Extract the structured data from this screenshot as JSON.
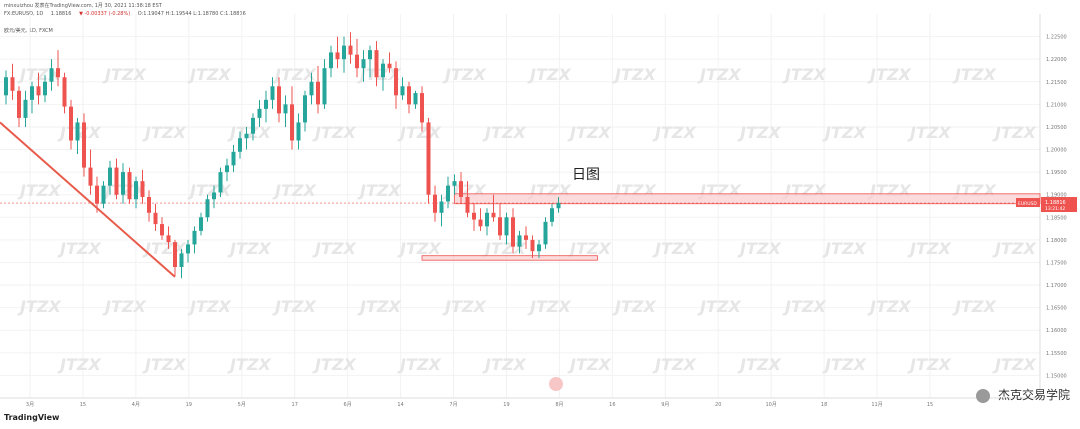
{
  "header": {
    "line1": "minxuizhou 发表在TradingView.com, 1月 30, 2021 11:38:18 EST",
    "symbol": "FX:EURUSD, 1D",
    "last": "1.18816",
    "change": "▼ -0.00337 (-0.28%)",
    "ohlc": "O:1.19047 H:1.19544 L:1.18780 C:1.18816",
    "pair_label": "欧元/美元, 1D, FXCM"
  },
  "annotation": {
    "text": "日图"
  },
  "price_tag": {
    "symbol": "EURUSD",
    "price": "1.18816",
    "countdown": "13:21:42"
  },
  "branding": {
    "platform": "TradingView",
    "account": "杰克交易学院",
    "watermark_text": "JTZX"
  },
  "colors": {
    "up": "#26a69a",
    "down": "#ef5350",
    "trendline": "#e85b4b",
    "zone_fill": "#f9cccc",
    "zone_border": "#ef5350",
    "grid": "#f2f2f2",
    "watermark": "#e6e6e6"
  },
  "chart_data": {
    "type": "candlestick",
    "title": "欧元/美元, 1D, FXCM",
    "ylim": [
      1.145,
      1.23
    ],
    "y_ticks": [
      "1.22500",
      "1.22000",
      "1.21500",
      "1.21000",
      "1.20500",
      "1.20000",
      "1.19500",
      "1.19000",
      "1.18500",
      "1.18000",
      "1.17500",
      "1.17000",
      "1.16500",
      "1.16000",
      "1.15500",
      "1.15000"
    ],
    "x_ticks": [
      "3月",
      "15",
      "4月",
      "19",
      "5月",
      "17",
      "6月",
      "14",
      "7月",
      "19",
      "8月",
      "16",
      "9月",
      "20",
      "10月",
      "18",
      "11月",
      "15"
    ],
    "candles": [
      [
        1.212,
        1.2175,
        1.21,
        1.216
      ],
      [
        1.216,
        1.219,
        1.211,
        1.213
      ],
      [
        1.213,
        1.214,
        1.205,
        1.207
      ],
      [
        1.207,
        1.213,
        1.205,
        1.211
      ],
      [
        1.211,
        1.215,
        1.208,
        1.214
      ],
      [
        1.214,
        1.217,
        1.21,
        1.212
      ],
      [
        1.212,
        1.2165,
        1.2105,
        1.215
      ],
      [
        1.215,
        1.22,
        1.213,
        1.218
      ],
      [
        1.218,
        1.222,
        1.214,
        1.216
      ],
      [
        1.216,
        1.217,
        1.208,
        1.2095
      ],
      [
        1.2095,
        1.211,
        1.2,
        1.202
      ],
      [
        1.202,
        1.207,
        1.199,
        1.206
      ],
      [
        1.206,
        1.208,
        1.194,
        1.196
      ],
      [
        1.196,
        1.2,
        1.19,
        1.192
      ],
      [
        1.192,
        1.194,
        1.186,
        1.188
      ],
      [
        1.188,
        1.193,
        1.187,
        1.192
      ],
      [
        1.192,
        1.1975,
        1.19,
        1.196
      ],
      [
        1.196,
        1.198,
        1.189,
        1.19
      ],
      [
        1.19,
        1.197,
        1.188,
        1.195
      ],
      [
        1.195,
        1.196,
        1.188,
        1.189
      ],
      [
        1.189,
        1.194,
        1.187,
        1.193
      ],
      [
        1.193,
        1.1955,
        1.188,
        1.1895
      ],
      [
        1.1895,
        1.191,
        1.184,
        1.186
      ],
      [
        1.186,
        1.188,
        1.182,
        1.1835
      ],
      [
        1.1835,
        1.185,
        1.18,
        1.181
      ],
      [
        1.181,
        1.183,
        1.178,
        1.1795
      ],
      [
        1.1795,
        1.18,
        1.172,
        1.174
      ],
      [
        1.174,
        1.178,
        1.1715,
        1.177
      ],
      [
        1.177,
        1.18,
        1.175,
        1.179
      ],
      [
        1.179,
        1.183,
        1.177,
        1.182
      ],
      [
        1.182,
        1.186,
        1.181,
        1.185
      ],
      [
        1.185,
        1.19,
        1.184,
        1.189
      ],
      [
        1.189,
        1.192,
        1.187,
        1.1905
      ],
      [
        1.1905,
        1.196,
        1.1895,
        1.195
      ],
      [
        1.195,
        1.198,
        1.193,
        1.1965
      ],
      [
        1.1965,
        1.201,
        1.195,
        1.1995
      ],
      [
        1.1995,
        1.204,
        1.198,
        1.2025
      ],
      [
        1.2025,
        1.205,
        1.2,
        1.2035
      ],
      [
        1.2035,
        1.208,
        1.202,
        1.207
      ],
      [
        1.207,
        1.211,
        1.205,
        1.209
      ],
      [
        1.209,
        1.213,
        1.206,
        1.211
      ],
      [
        1.211,
        1.216,
        1.209,
        1.214
      ],
      [
        1.214,
        1.216,
        1.206,
        1.208
      ],
      [
        1.208,
        1.212,
        1.205,
        1.21
      ],
      [
        1.21,
        1.214,
        1.2,
        1.202
      ],
      [
        1.202,
        1.208,
        1.2,
        1.206
      ],
      [
        1.206,
        1.213,
        1.204,
        1.212
      ],
      [
        1.212,
        1.217,
        1.21,
        1.215
      ],
      [
        1.215,
        1.2185,
        1.208,
        1.21
      ],
      [
        1.21,
        1.22,
        1.209,
        1.218
      ],
      [
        1.218,
        1.223,
        1.216,
        1.2215
      ],
      [
        1.2215,
        1.225,
        1.218,
        1.22
      ],
      [
        1.22,
        1.225,
        1.217,
        1.223
      ],
      [
        1.223,
        1.226,
        1.219,
        1.221
      ],
      [
        1.221,
        1.2245,
        1.216,
        1.218
      ],
      [
        1.218,
        1.222,
        1.215,
        1.22
      ],
      [
        1.22,
        1.223,
        1.216,
        1.222
      ],
      [
        1.222,
        1.224,
        1.214,
        1.216
      ],
      [
        1.216,
        1.22,
        1.213,
        1.219
      ],
      [
        1.219,
        1.2215,
        1.217,
        1.218
      ],
      [
        1.218,
        1.2195,
        1.209,
        1.212
      ],
      [
        1.212,
        1.216,
        1.211,
        1.214
      ],
      [
        1.214,
        1.215,
        1.208,
        1.21
      ],
      [
        1.21,
        1.213,
        1.209,
        1.2125
      ],
      [
        1.2125,
        1.214,
        1.204,
        1.206
      ],
      [
        1.206,
        1.207,
        1.188,
        1.19
      ],
      [
        1.19,
        1.192,
        1.184,
        1.186
      ],
      [
        1.186,
        1.19,
        1.183,
        1.1885
      ],
      [
        1.1885,
        1.194,
        1.187,
        1.192
      ],
      [
        1.192,
        1.1945,
        1.19,
        1.193
      ],
      [
        1.193,
        1.195,
        1.188,
        1.1895
      ],
      [
        1.1895,
        1.193,
        1.185,
        1.186
      ],
      [
        1.186,
        1.188,
        1.182,
        1.1845
      ],
      [
        1.1845,
        1.187,
        1.182,
        1.183
      ],
      [
        1.183,
        1.187,
        1.181,
        1.186
      ],
      [
        1.186,
        1.19,
        1.184,
        1.185
      ],
      [
        1.185,
        1.188,
        1.18,
        1.181
      ],
      [
        1.181,
        1.186,
        1.179,
        1.185
      ],
      [
        1.185,
        1.187,
        1.177,
        1.1785
      ],
      [
        1.1785,
        1.182,
        1.177,
        1.181
      ],
      [
        1.181,
        1.183,
        1.178,
        1.18
      ],
      [
        1.18,
        1.181,
        1.176,
        1.1775
      ],
      [
        1.1775,
        1.18,
        1.176,
        1.179
      ],
      [
        1.179,
        1.185,
        1.178,
        1.184
      ],
      [
        1.184,
        1.188,
        1.183,
        1.187
      ],
      [
        1.187,
        1.1895,
        1.186,
        1.1882
      ]
    ],
    "trendline": {
      "from": [
        0,
        1.206
      ],
      "to": [
        26,
        1.1718
      ]
    },
    "zones": [
      {
        "name": "resistance",
        "x_from": 69,
        "x_to": 200,
        "y_top": 1.1902,
        "y_bottom": 1.188
      },
      {
        "name": "support",
        "x_from": 64,
        "x_to": 91,
        "y_top": 1.1765,
        "y_bottom": 1.1755
      }
    ],
    "current_price_line": 1.18816,
    "grid": true
  }
}
